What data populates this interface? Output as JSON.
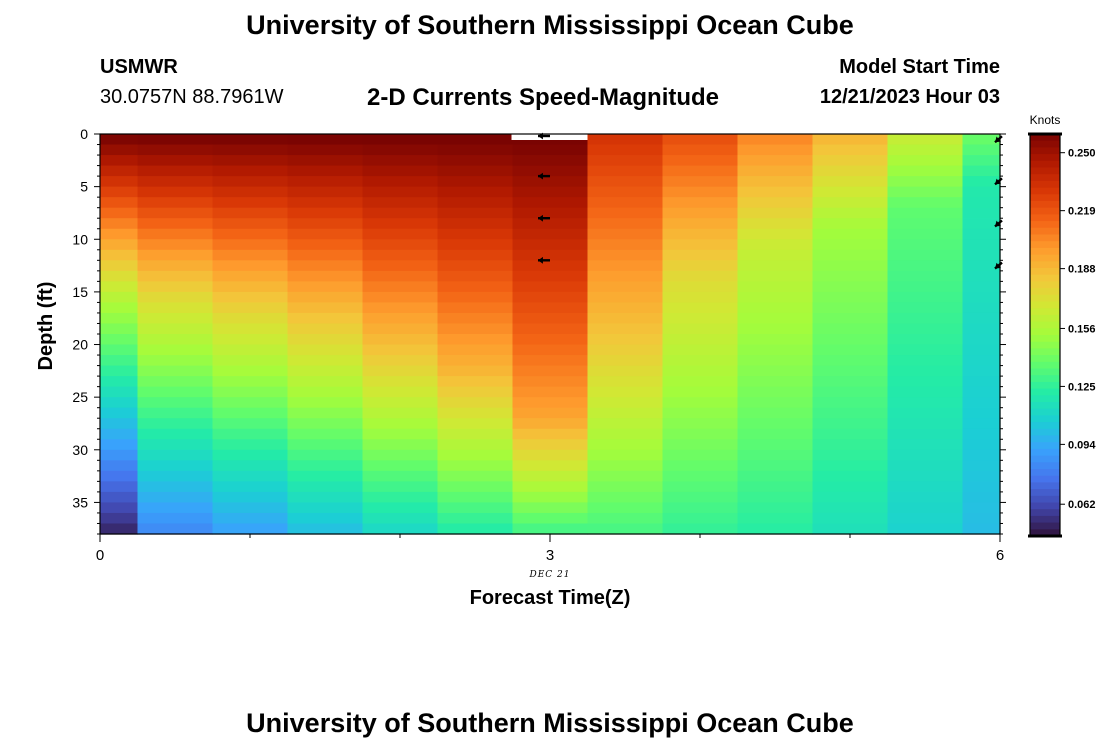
{
  "header": {
    "title": "University of Southern Mississippi Ocean Cube",
    "station": "USMWR",
    "coords": "30.0757N  88.7961W",
    "plot_title": "2-D Currents Speed-Magnitude",
    "model_start_label": "Model Start Time",
    "model_start_value": "12/21/2023 Hour 03"
  },
  "footer": {
    "title": "University of Southern Mississippi Ocean Cube"
  },
  "chart_data": {
    "type": "heatmap",
    "xlabel": "Forecast Time(Z)",
    "ylabel": "Depth (ft)",
    "x_ticks": [
      "0",
      "3",
      "6"
    ],
    "x_tick_values": [
      0,
      3,
      6
    ],
    "y_ticks": [
      "0",
      "5",
      "10",
      "15",
      "20",
      "25",
      "30",
      "35"
    ],
    "y_tick_values": [
      0,
      5,
      10,
      15,
      20,
      25,
      30,
      35
    ],
    "date_label": "DEC 21",
    "date_label_x": 3,
    "xlim": [
      0,
      6
    ],
    "ylim": [
      38,
      0
    ],
    "colorbar": {
      "title": "Knots",
      "ticks": [
        "0.250",
        "0.219",
        "0.188",
        "0.156",
        "0.125",
        "0.094",
        "0.062"
      ],
      "tick_values": [
        0.25,
        0.219,
        0.188,
        0.156,
        0.125,
        0.094,
        0.062
      ],
      "range": [
        0.045,
        0.26
      ],
      "stops": [
        "#30123b",
        "#4145ab",
        "#4675ed",
        "#39a2fc",
        "#1bcfd4",
        "#24eca6",
        "#61fc6c",
        "#a4fc3b",
        "#d1e834",
        "#f3c63a",
        "#fe9b2d",
        "#f36315",
        "#d93806",
        "#b11901",
        "#7a0402"
      ]
    },
    "columns": [
      {
        "x_start": 0.0,
        "x_end": 0.25,
        "surface": 0.262,
        "mid_depth": 16.0,
        "bottom": 0.05
      },
      {
        "x_start": 0.25,
        "x_end": 0.75,
        "surface": 0.262,
        "mid_depth": 16.0,
        "bottom": 0.082
      },
      {
        "x_start": 0.75,
        "x_end": 1.25,
        "surface": 0.262,
        "mid_depth": 17.0,
        "bottom": 0.09
      },
      {
        "x_start": 1.25,
        "x_end": 1.75,
        "surface": 0.262,
        "mid_depth": 18.0,
        "bottom": 0.1
      },
      {
        "x_start": 1.75,
        "x_end": 2.25,
        "surface": 0.262,
        "mid_depth": 20.0,
        "bottom": 0.11
      },
      {
        "x_start": 2.25,
        "x_end": 2.75,
        "surface": 0.262,
        "mid_depth": 22.0,
        "bottom": 0.12
      },
      {
        "x_start": 2.75,
        "x_end": 3.25,
        "surface": 0.262,
        "mid_depth": 27.0,
        "bottom": 0.128
      },
      {
        "x_start": 3.25,
        "x_end": 3.75,
        "surface": 0.232,
        "mid_depth": 20.0,
        "bottom": 0.13
      },
      {
        "x_start": 3.75,
        "x_end": 4.25,
        "surface": 0.222,
        "mid_depth": 14.0,
        "bottom": 0.125
      },
      {
        "x_start": 4.25,
        "x_end": 4.75,
        "surface": 0.205,
        "mid_depth": 11.0,
        "bottom": 0.122
      },
      {
        "x_start": 4.75,
        "x_end": 5.25,
        "surface": 0.19,
        "mid_depth": 9.0,
        "bottom": 0.115
      },
      {
        "x_start": 5.25,
        "x_end": 5.75,
        "surface": 0.165,
        "mid_depth": 7.0,
        "bottom": 0.108
      },
      {
        "x_start": 5.75,
        "x_end": 6.0,
        "surface": 0.14,
        "mid_depth": 5.0,
        "bottom": 0.1
      }
    ],
    "vectors": [
      {
        "x": 3,
        "depth": 0,
        "direction": "west"
      },
      {
        "x": 3,
        "depth": 4,
        "direction": "west"
      },
      {
        "x": 3,
        "depth": 8,
        "direction": "west"
      },
      {
        "x": 3,
        "depth": 12,
        "direction": "west"
      },
      {
        "x": 6,
        "depth": 0.5,
        "direction": "southwest"
      },
      {
        "x": 6,
        "depth": 4.5,
        "direction": "southwest"
      },
      {
        "x": 6,
        "depth": 8.5,
        "direction": "southwest"
      },
      {
        "x": 6,
        "depth": 12.5,
        "direction": "southwest"
      }
    ]
  }
}
